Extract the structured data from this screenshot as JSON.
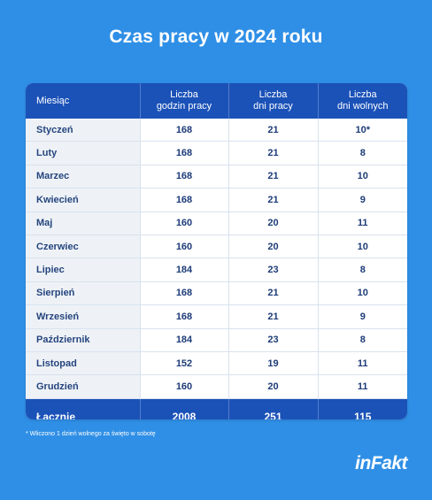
{
  "title": "Czas pracy w 2024 roku",
  "table": {
    "headers": [
      {
        "line1": "Miesiąc",
        "line2": ""
      },
      {
        "line1": "Liczba",
        "line2": "godzin pracy"
      },
      {
        "line1": "Liczba",
        "line2": "dni pracy"
      },
      {
        "line1": "Liczba",
        "line2": "dni wolnych"
      }
    ],
    "rows": [
      [
        "Styczeń",
        "168",
        "21",
        "10*"
      ],
      [
        "Luty",
        "168",
        "21",
        "8"
      ],
      [
        "Marzec",
        "168",
        "21",
        "10"
      ],
      [
        "Kwiecień",
        "168",
        "21",
        "9"
      ],
      [
        "Maj",
        "160",
        "20",
        "11"
      ],
      [
        "Czerwiec",
        "160",
        "20",
        "10"
      ],
      [
        "Lipiec",
        "184",
        "23",
        "8"
      ],
      [
        "Sierpień",
        "168",
        "21",
        "10"
      ],
      [
        "Wrzesień",
        "168",
        "21",
        "9"
      ],
      [
        "Październik",
        "184",
        "23",
        "8"
      ],
      [
        "Listopad",
        "152",
        "19",
        "11"
      ],
      [
        "Grudzień",
        "160",
        "20",
        "11"
      ]
    ],
    "total": [
      "Łącznie",
      "2008",
      "251",
      "115"
    ]
  },
  "footnote": "* Wliczono 1 dzień wolnego za święto w sobotę",
  "logo": "inFakt",
  "colors": {
    "background": "#2f8fe6",
    "header": "#1b52b8",
    "text": "#1d3c78"
  }
}
